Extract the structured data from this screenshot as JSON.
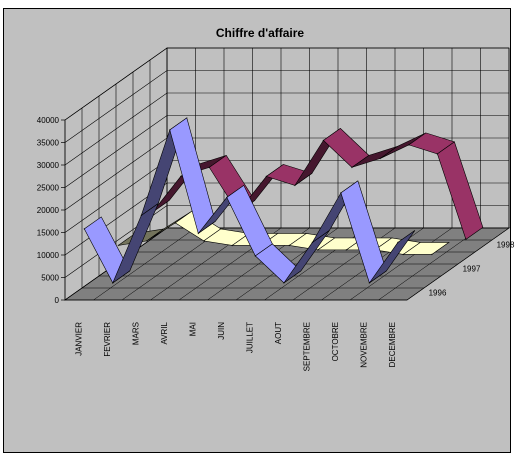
{
  "chart_data": {
    "type": "line",
    "title": "Chiffre d'affaire",
    "categories": [
      "JANVIER",
      "FEVRIER",
      "MARS",
      "AVRIL",
      "MAI",
      "JUIN",
      "JUILLET",
      "AOUT",
      "SEPTEMBRE",
      "OCTOBRE",
      "NOVEMBRE",
      "DECEMBRE"
    ],
    "series": [
      {
        "name": "1996",
        "values": [
          15000,
          3000,
          18000,
          37000,
          14000,
          22000,
          9000,
          3000,
          12000,
          23000,
          3000,
          12000
        ],
        "color": "#9999ff"
      },
      {
        "name": "1997",
        "values": [
          6000,
          7000,
          11000,
          7000,
          6000,
          6000,
          6000,
          5000,
          5000,
          5000,
          4000,
          4000
        ],
        "color": "#ffffcc"
      },
      {
        "name": "1998",
        "values": [
          8000,
          16000,
          18000,
          8000,
          16000,
          14000,
          24000,
          18000,
          20000,
          23000,
          21000,
          2000
        ],
        "color": "#993366"
      }
    ],
    "yticks": [
      0,
      5000,
      10000,
      15000,
      20000,
      25000,
      30000,
      35000,
      40000
    ],
    "ylim": [
      0,
      40000
    ],
    "grid": true,
    "legend": "none",
    "colors": {
      "wall": "#c0c0c0",
      "floor": "#808080",
      "grid": "#000000"
    }
  }
}
